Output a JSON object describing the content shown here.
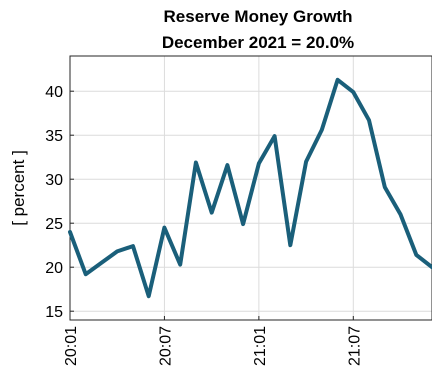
{
  "chart_data": {
    "type": "line",
    "title": "Reserve Money Growth",
    "subtitle": "December 2021 = 20.0%",
    "ylabel": "[ percent ]",
    "xlabel": "",
    "ylim": [
      14,
      44
    ],
    "yticks": [
      15,
      20,
      25,
      30,
      35,
      40
    ],
    "grid": true,
    "x": [
      "20:01",
      "20:02",
      "20:03",
      "20:04",
      "20:05",
      "20:06",
      "20:07",
      "20:08",
      "20:09",
      "20:10",
      "20:11",
      "20:12",
      "21:01",
      "21:02",
      "21:03",
      "21:04",
      "21:05",
      "21:06",
      "21:07",
      "21:08",
      "21:09",
      "21:10",
      "21:11",
      "21:12"
    ],
    "xticks": [
      "20:01",
      "20:07",
      "21:01",
      "21:07"
    ],
    "series": [
      {
        "values": [
          24.0,
          19.2,
          20.5,
          21.8,
          22.4,
          16.7,
          24.5,
          20.3,
          31.9,
          26.2,
          31.6,
          24.9,
          31.8,
          34.9,
          22.5,
          32.0,
          35.6,
          41.3,
          39.9,
          36.7,
          29.1,
          26.0,
          21.4,
          20.0
        ],
        "color": "#1a5f7a"
      }
    ]
  }
}
